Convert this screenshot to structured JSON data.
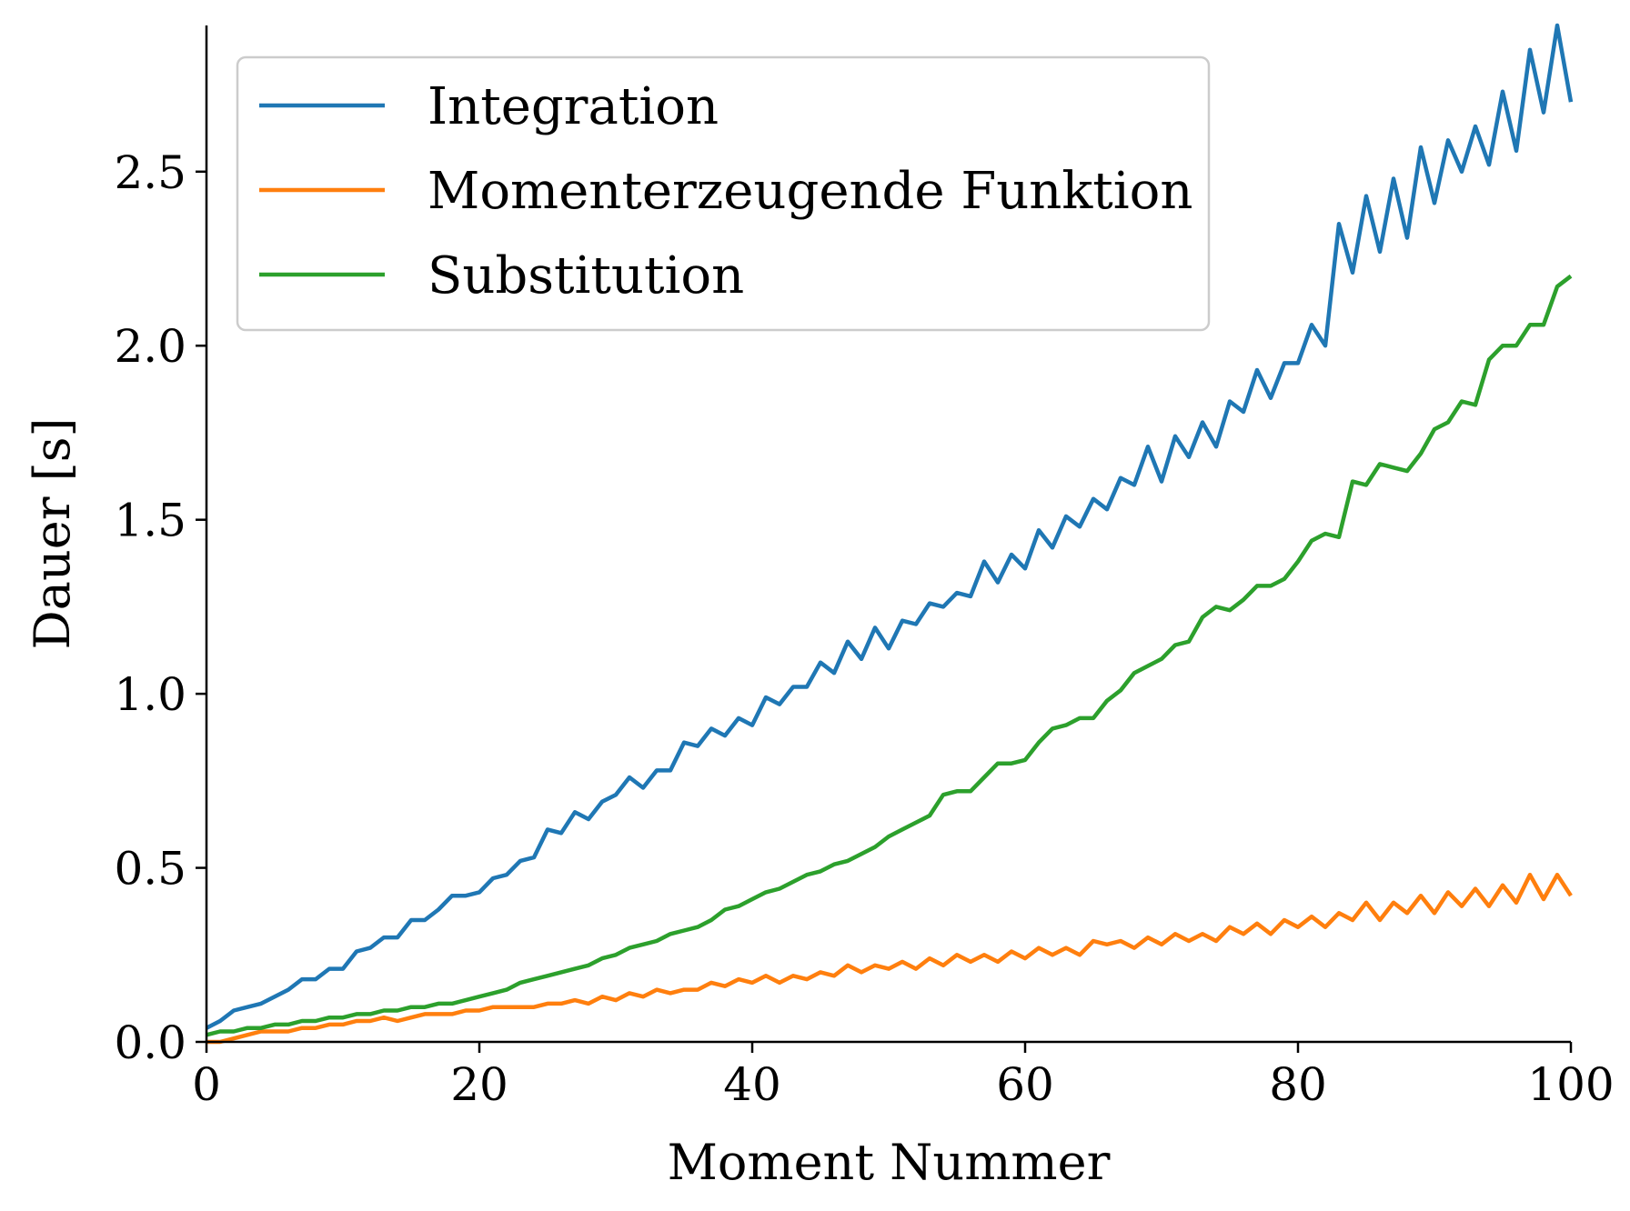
{
  "chart_data": {
    "type": "line",
    "title": "",
    "xlabel": "Moment Nummer",
    "ylabel": "Dauer [s]",
    "xlim": [
      0,
      100
    ],
    "ylim": [
      0,
      2.92
    ],
    "xticks": [
      0,
      20,
      40,
      60,
      80,
      100
    ],
    "xtick_labels": [
      "0",
      "20",
      "40",
      "60",
      "80",
      "100"
    ],
    "yticks": [
      0.0,
      0.5,
      1.0,
      1.5,
      2.0,
      2.5
    ],
    "ytick_labels": [
      "0.0",
      "0.5",
      "1.0",
      "1.5",
      "2.0",
      "2.5"
    ],
    "grid": false,
    "legend_position": "top-left",
    "series": [
      {
        "name": "Integration",
        "color": "#1f77b4",
        "x": [
          0,
          1,
          2,
          3,
          4,
          5,
          6,
          7,
          8,
          9,
          10,
          11,
          12,
          13,
          14,
          15,
          16,
          17,
          18,
          19,
          20,
          21,
          22,
          23,
          24,
          25,
          26,
          27,
          28,
          29,
          30,
          31,
          32,
          33,
          34,
          35,
          36,
          37,
          38,
          39,
          40,
          41,
          42,
          43,
          44,
          45,
          46,
          47,
          48,
          49,
          50,
          51,
          52,
          53,
          54,
          55,
          56,
          57,
          58,
          59,
          60,
          61,
          62,
          63,
          64,
          65,
          66,
          67,
          68,
          69,
          70,
          71,
          72,
          73,
          74,
          75,
          76,
          77,
          78,
          79,
          80,
          81,
          82,
          83,
          84,
          85,
          86,
          87,
          88,
          89,
          90,
          91,
          92,
          93,
          94,
          95,
          96,
          97,
          98,
          99,
          100
        ],
        "y": [
          0.04,
          0.06,
          0.09,
          0.1,
          0.11,
          0.13,
          0.15,
          0.18,
          0.18,
          0.21,
          0.21,
          0.26,
          0.27,
          0.3,
          0.3,
          0.35,
          0.35,
          0.38,
          0.42,
          0.42,
          0.43,
          0.47,
          0.48,
          0.52,
          0.53,
          0.61,
          0.6,
          0.66,
          0.64,
          0.69,
          0.71,
          0.76,
          0.73,
          0.78,
          0.78,
          0.86,
          0.85,
          0.9,
          0.88,
          0.93,
          0.91,
          0.99,
          0.97,
          1.02,
          1.02,
          1.09,
          1.06,
          1.15,
          1.1,
          1.19,
          1.13,
          1.21,
          1.2,
          1.26,
          1.25,
          1.29,
          1.28,
          1.38,
          1.32,
          1.4,
          1.36,
          1.47,
          1.42,
          1.51,
          1.48,
          1.56,
          1.53,
          1.62,
          1.6,
          1.71,
          1.61,
          1.74,
          1.68,
          1.78,
          1.71,
          1.84,
          1.81,
          1.93,
          1.85,
          1.95,
          1.95,
          2.06,
          2.0,
          2.35,
          2.21,
          2.43,
          2.27,
          2.48,
          2.31,
          2.57,
          2.41,
          2.59,
          2.5,
          2.63,
          2.52,
          2.73,
          2.56,
          2.85,
          2.67,
          2.92,
          2.7
        ]
      },
      {
        "name": "Momenterzeugende Funktion",
        "color": "#ff7f0e",
        "x": [
          0,
          1,
          2,
          3,
          4,
          5,
          6,
          7,
          8,
          9,
          10,
          11,
          12,
          13,
          14,
          15,
          16,
          17,
          18,
          19,
          20,
          21,
          22,
          23,
          24,
          25,
          26,
          27,
          28,
          29,
          30,
          31,
          32,
          33,
          34,
          35,
          36,
          37,
          38,
          39,
          40,
          41,
          42,
          43,
          44,
          45,
          46,
          47,
          48,
          49,
          50,
          51,
          52,
          53,
          54,
          55,
          56,
          57,
          58,
          59,
          60,
          61,
          62,
          63,
          64,
          65,
          66,
          67,
          68,
          69,
          70,
          71,
          72,
          73,
          74,
          75,
          76,
          77,
          78,
          79,
          80,
          81,
          82,
          83,
          84,
          85,
          86,
          87,
          88,
          89,
          90,
          91,
          92,
          93,
          94,
          95,
          96,
          97,
          98,
          99,
          100
        ],
        "y": [
          0.0,
          0.0,
          0.01,
          0.02,
          0.03,
          0.03,
          0.03,
          0.04,
          0.04,
          0.05,
          0.05,
          0.06,
          0.06,
          0.07,
          0.06,
          0.07,
          0.08,
          0.08,
          0.08,
          0.09,
          0.09,
          0.1,
          0.1,
          0.1,
          0.1,
          0.11,
          0.11,
          0.12,
          0.11,
          0.13,
          0.12,
          0.14,
          0.13,
          0.15,
          0.14,
          0.15,
          0.15,
          0.17,
          0.16,
          0.18,
          0.17,
          0.19,
          0.17,
          0.19,
          0.18,
          0.2,
          0.19,
          0.22,
          0.2,
          0.22,
          0.21,
          0.23,
          0.21,
          0.24,
          0.22,
          0.25,
          0.23,
          0.25,
          0.23,
          0.26,
          0.24,
          0.27,
          0.25,
          0.27,
          0.25,
          0.29,
          0.28,
          0.29,
          0.27,
          0.3,
          0.28,
          0.31,
          0.29,
          0.31,
          0.29,
          0.33,
          0.31,
          0.34,
          0.31,
          0.35,
          0.33,
          0.36,
          0.33,
          0.37,
          0.35,
          0.4,
          0.35,
          0.4,
          0.37,
          0.42,
          0.37,
          0.43,
          0.39,
          0.44,
          0.39,
          0.45,
          0.4,
          0.48,
          0.41,
          0.48,
          0.42
        ]
      },
      {
        "name": "Substitution",
        "color": "#2ca02c",
        "x": [
          0,
          1,
          2,
          3,
          4,
          5,
          6,
          7,
          8,
          9,
          10,
          11,
          12,
          13,
          14,
          15,
          16,
          17,
          18,
          19,
          20,
          21,
          22,
          23,
          24,
          25,
          26,
          27,
          28,
          29,
          30,
          31,
          32,
          33,
          34,
          35,
          36,
          37,
          38,
          39,
          40,
          41,
          42,
          43,
          44,
          45,
          46,
          47,
          48,
          49,
          50,
          51,
          52,
          53,
          54,
          55,
          56,
          57,
          58,
          59,
          60,
          61,
          62,
          63,
          64,
          65,
          66,
          67,
          68,
          69,
          70,
          71,
          72,
          73,
          74,
          75,
          76,
          77,
          78,
          79,
          80,
          81,
          82,
          83,
          84,
          85,
          86,
          87,
          88,
          89,
          90,
          91,
          92,
          93,
          94,
          95,
          96,
          97,
          98,
          99,
          100
        ],
        "y": [
          0.02,
          0.03,
          0.03,
          0.04,
          0.04,
          0.05,
          0.05,
          0.06,
          0.06,
          0.07,
          0.07,
          0.08,
          0.08,
          0.09,
          0.09,
          0.1,
          0.1,
          0.11,
          0.11,
          0.12,
          0.13,
          0.14,
          0.15,
          0.17,
          0.18,
          0.19,
          0.2,
          0.21,
          0.22,
          0.24,
          0.25,
          0.27,
          0.28,
          0.29,
          0.31,
          0.32,
          0.33,
          0.35,
          0.38,
          0.39,
          0.41,
          0.43,
          0.44,
          0.46,
          0.48,
          0.49,
          0.51,
          0.52,
          0.54,
          0.56,
          0.59,
          0.61,
          0.63,
          0.65,
          0.71,
          0.72,
          0.72,
          0.76,
          0.8,
          0.8,
          0.81,
          0.86,
          0.9,
          0.91,
          0.93,
          0.93,
          0.98,
          1.01,
          1.06,
          1.08,
          1.1,
          1.14,
          1.15,
          1.22,
          1.25,
          1.24,
          1.27,
          1.31,
          1.31,
          1.33,
          1.38,
          1.44,
          1.46,
          1.45,
          1.61,
          1.6,
          1.66,
          1.65,
          1.64,
          1.69,
          1.76,
          1.78,
          1.84,
          1.83,
          1.96,
          2.0,
          2.0,
          2.06,
          2.06,
          2.17,
          2.2
        ]
      }
    ]
  }
}
